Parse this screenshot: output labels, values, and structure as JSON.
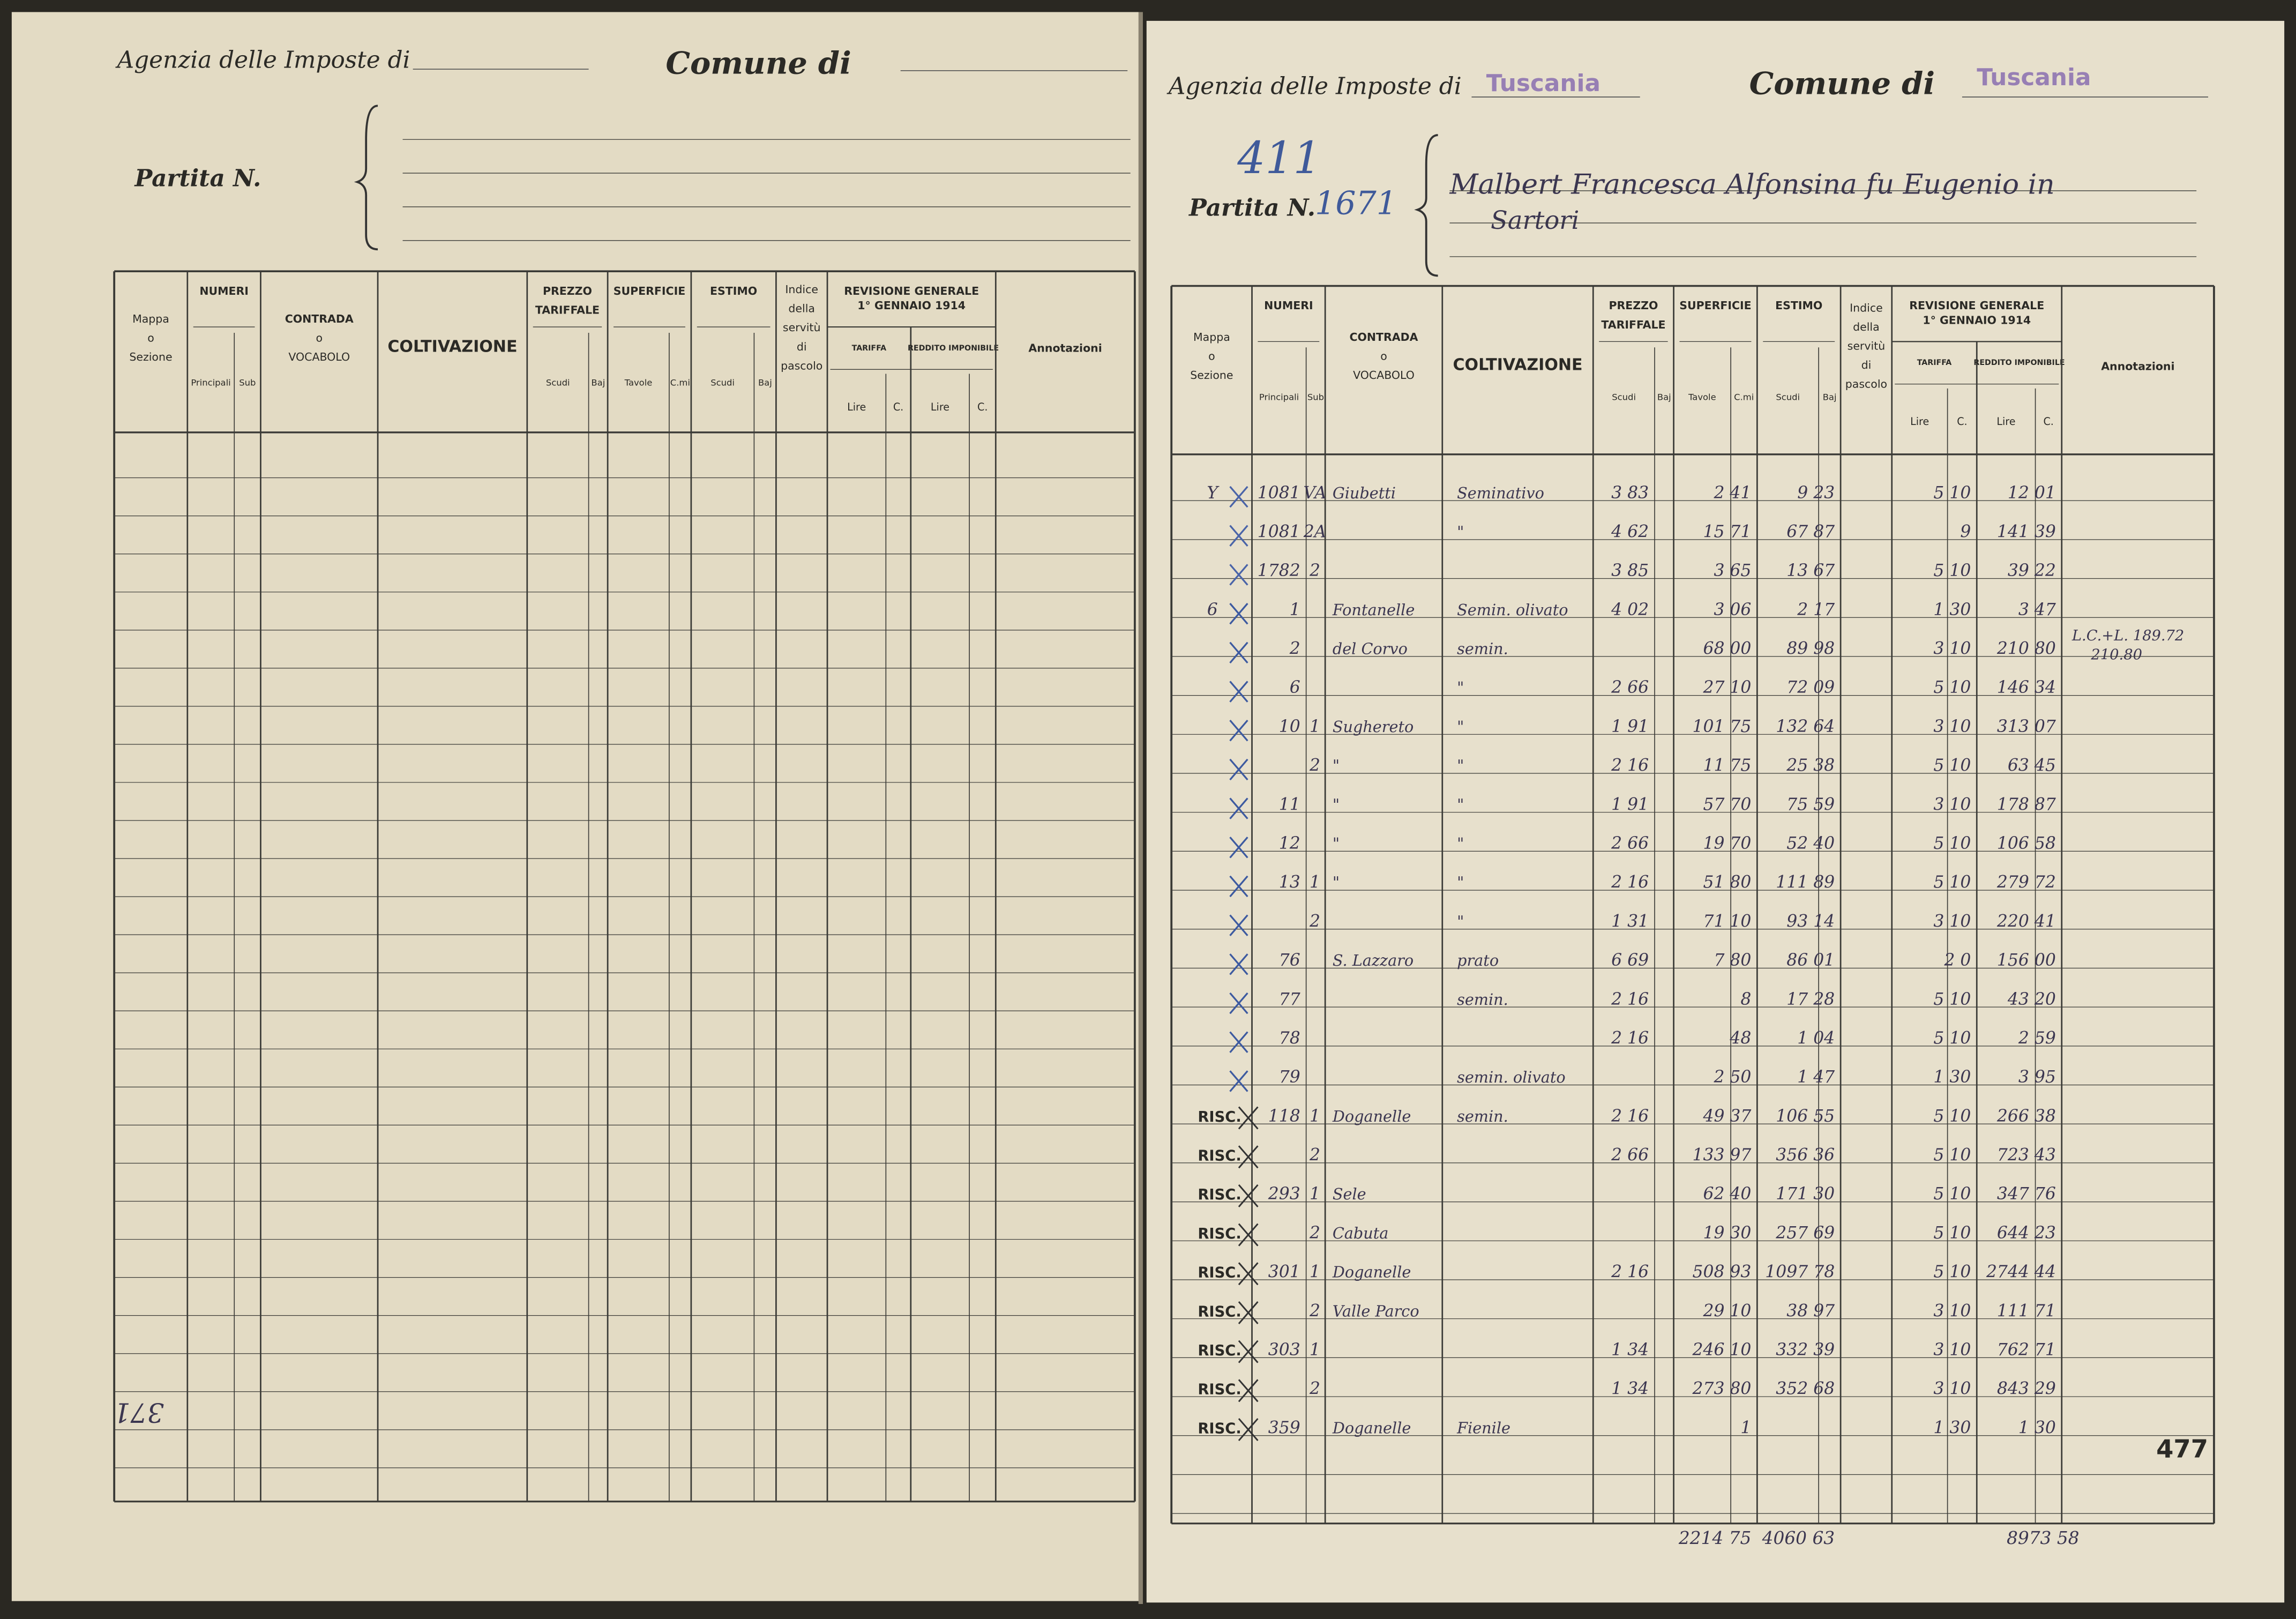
{
  "left_page": {
    "agency_label": "Agenzia delle Imposte di",
    "comune_label": "Comune di",
    "partita_label": "Partita N.",
    "margin_note": "371",
    "table": {
      "columns": [
        {
          "title": [
            "Mappa",
            "o",
            "Sezione"
          ]
        },
        {
          "title": [
            "NUMERI"
          ],
          "subs": [
            "Principali",
            "Sub"
          ]
        },
        {
          "title": [
            "CONTRADA",
            "o",
            "VOCABOLO"
          ]
        },
        {
          "title": [
            "COLTIVAZIONE"
          ]
        },
        {
          "title": [
            "PREZZO",
            "TARIFFALE"
          ],
          "subs": [
            "Scudi",
            "Baj"
          ]
        },
        {
          "title": [
            "SUPERFICIE"
          ],
          "subs": [
            "Tavole",
            "C.mi"
          ]
        },
        {
          "title": [
            "ESTIMO"
          ],
          "subs": [
            "Scudi",
            "Baj"
          ]
        },
        {
          "title": [
            "Indice",
            "della",
            "servitù",
            "di",
            "pascolo"
          ]
        },
        {
          "title": [
            "REVISIONE GENERALE",
            "1° GENNAIO 1914"
          ],
          "groups": [
            {
              "title": "TARIFFA",
              "subs": [
                "Lire",
                "C."
              ]
            },
            {
              "title": "REDDITO IMPONIBILE",
              "subs": [
                "Lire",
                "C."
              ]
            }
          ]
        },
        {
          "title": [
            "Annotazioni"
          ]
        }
      ]
    }
  },
  "right_page": {
    "agency_label": "Agenzia delle Imposte di",
    "agency_stamp": "Tuscania",
    "comune_label": "Comune di",
    "comune_stamp": "Tuscania",
    "partita_label": "Partita N.",
    "partita_number": "1671",
    "partita_old": "411",
    "owner": "Malbert Francesca Alfonsina fu Eugenio in",
    "owner_line2": "Sartori",
    "page_number": "477",
    "annotations": [
      "L.C.+L. 189.72",
      "210.80"
    ],
    "table": {
      "columns": [
        {
          "title": [
            "Mappa",
            "o",
            "Sezione"
          ]
        },
        {
          "title": [
            "NUMERI"
          ],
          "subs": [
            "Principali",
            "Sub"
          ]
        },
        {
          "title": [
            "CONTRADA",
            "o",
            "VOCABOLO"
          ]
        },
        {
          "title": [
            "COLTIVAZIONE"
          ]
        },
        {
          "title": [
            "PREZZO",
            "TARIFFALE"
          ],
          "subs": [
            "Scudi",
            "Baj"
          ]
        },
        {
          "title": [
            "SUPERFICIE"
          ],
          "subs": [
            "Tavole",
            "C.mi"
          ]
        },
        {
          "title": [
            "ESTIMO"
          ],
          "subs": [
            "Scudi",
            "Baj"
          ]
        },
        {
          "title": [
            "Indice",
            "della",
            "servitù",
            "di",
            "pascolo"
          ]
        },
        {
          "title": [
            "REVISIONE GENERALE",
            "1° GENNAIO 1914"
          ],
          "groups": [
            {
              "title": "TARIFFA",
              "subs": [
                "Lire",
                "C."
              ]
            },
            {
              "title": "REDDITO IMPONIBILE",
              "subs": [
                "Lire",
                "C."
              ]
            }
          ]
        },
        {
          "title": [
            "Annotazioni"
          ]
        }
      ],
      "rows": [
        [
          "Y",
          "1081",
          "VA",
          "Giubetti",
          "Seminativo",
          "3 83",
          "2 41",
          "9 23",
          null,
          "5 10",
          "12 01"
        ],
        [
          null,
          "1081",
          "2A",
          null,
          "\"",
          "4 62",
          "15 71",
          "67 87",
          null,
          "9",
          "141 39"
        ],
        [
          null,
          "1782",
          "2",
          null,
          null,
          "3 85",
          "3 65",
          "13 67",
          null,
          "5 10",
          "39 22"
        ],
        [
          "6",
          "1",
          null,
          "Fontanelle",
          "Semin. olivato",
          "4 02",
          "3 06",
          "2 17",
          null,
          "1 30",
          "3 47"
        ],
        [
          null,
          "2",
          null,
          "del Corvo",
          "semin.",
          null,
          "68 00",
          "89 98",
          null,
          "3 10",
          "210 80"
        ],
        [
          null,
          "6",
          null,
          null,
          "\"",
          "2 66",
          "27 10",
          "72 09",
          null,
          "5 10",
          "146 34"
        ],
        [
          null,
          "10",
          "1",
          "Sughereto",
          "\"",
          "1 91",
          "101 75",
          "132 64",
          null,
          "3 10",
          "313 07"
        ],
        [
          null,
          null,
          "2",
          "\"",
          "\"",
          "2 16",
          "11 75",
          "25 38",
          null,
          "5 10",
          "63 45"
        ],
        [
          null,
          "11",
          null,
          "\"",
          "\"",
          "1 91",
          "57 70",
          "75 59",
          null,
          "3 10",
          "178 87"
        ],
        [
          null,
          "12",
          null,
          "\"",
          "\"",
          "2 66",
          "19 70",
          "52 40",
          null,
          "5 10",
          "106 58"
        ],
        [
          null,
          "13",
          "1",
          "\"",
          "\"",
          "2 16",
          "51 80",
          "111 89",
          null,
          "5 10",
          "279 72"
        ],
        [
          null,
          null,
          "2",
          null,
          "\"",
          "1 31",
          "71 10",
          "93 14",
          null,
          "3 10",
          "220 41"
        ],
        [
          null,
          "76",
          null,
          "S. Lazzaro",
          "prato",
          "6 69",
          "7 80",
          "86 01",
          null,
          "2 0",
          "156 00"
        ],
        [
          null,
          "77",
          null,
          null,
          "semin.",
          "2 16",
          "8",
          "17 28",
          null,
          "5 10",
          "43 20"
        ],
        [
          null,
          "78",
          null,
          null,
          null,
          "2 16",
          "48",
          "1 04",
          null,
          "5 10",
          "2 59"
        ],
        [
          null,
          "79",
          null,
          null,
          "semin. olivato",
          null,
          "2 50",
          "1 47",
          null,
          "1 30",
          "3 95"
        ],
        [
          "RISC.",
          "118",
          "1",
          "Doganelle",
          "semin.",
          "2 16",
          "49 37",
          "106 55",
          null,
          "5 10",
          "266 38"
        ],
        [
          "RISC.",
          null,
          "2",
          null,
          null,
          "2 66",
          "133 97",
          "356 36",
          null,
          "5 10",
          "723 43"
        ],
        [
          "RISC.",
          "293",
          "1",
          "Sele",
          null,
          null,
          "62 40",
          "171 30",
          null,
          "5 10",
          "347 76"
        ],
        [
          "RISC.",
          null,
          "2",
          "Cabuta",
          null,
          null,
          "19 30",
          "257 69",
          null,
          "5 10",
          "644 23"
        ],
        [
          "RISC.",
          "301",
          "1",
          "Doganelle",
          null,
          "2 16",
          "508 93",
          "1097 78",
          null,
          "5 10",
          "2744 44"
        ],
        [
          "RISC.",
          null,
          "2",
          "Valle Parco",
          null,
          null,
          "29 10",
          "38 97",
          null,
          "3 10",
          "111 71"
        ],
        [
          "RISC.",
          "303",
          "1",
          null,
          null,
          "1 34",
          "246 10",
          "332 39",
          null,
          "3 10",
          "762 71"
        ],
        [
          "RISC.",
          null,
          "2",
          null,
          null,
          "1 34",
          "273 80",
          "352 68",
          null,
          "3 10",
          "843 29"
        ],
        [
          "RISC.",
          "359",
          null,
          "Doganelle",
          "Fienile",
          null,
          "1",
          null,
          null,
          "1 30",
          "1 30"
        ]
      ],
      "totals": {
        "superficie": "2214 75",
        "estimo": "4060 63",
        "reddito": "8973 58"
      }
    }
  }
}
